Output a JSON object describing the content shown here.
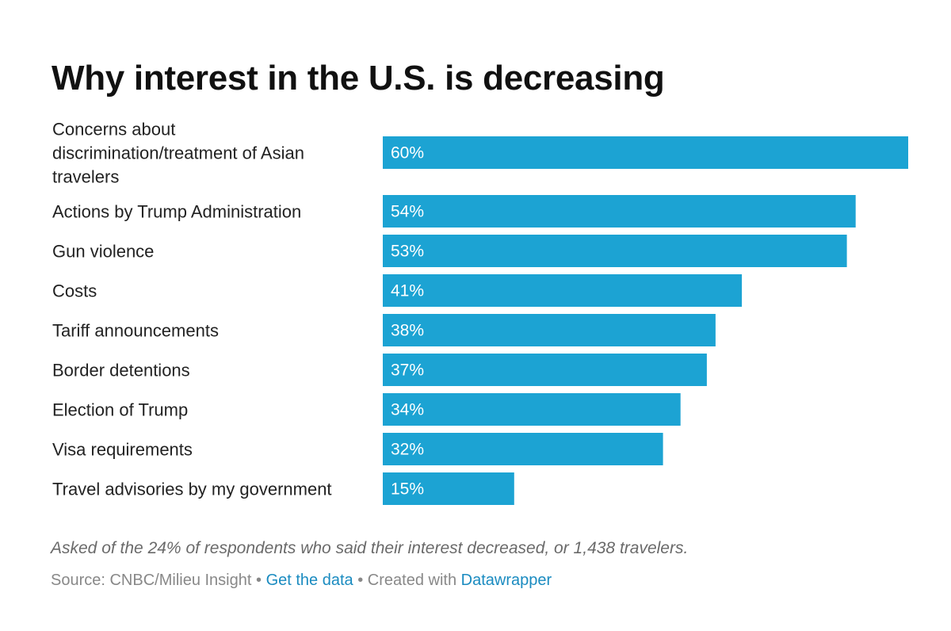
{
  "title": "Why interest in the U.S. is decreasing",
  "chart_data": {
    "type": "bar",
    "orientation": "horizontal",
    "title": "Why interest in the U.S. is decreasing",
    "categories": [
      "Concerns about discrimination/treatment of Asian travelers",
      "Actions by Trump Administration",
      "Gun violence",
      "Costs",
      "Tariff announcements",
      "Border detentions",
      "Election of Trump",
      "Visa requirements",
      "Travel advisories by my government"
    ],
    "label_lines": [
      [
        "Concerns about",
        "discrimination/treatment of Asian",
        "travelers"
      ],
      [
        "Actions by Trump Administration"
      ],
      [
        "Gun violence"
      ],
      [
        "Costs"
      ],
      [
        "Tariff announcements"
      ],
      [
        "Border detentions"
      ],
      [
        "Election of Trump"
      ],
      [
        "Visa requirements"
      ],
      [
        "Travel advisories by my government"
      ]
    ],
    "values": [
      60,
      54,
      53,
      41,
      38,
      37,
      34,
      32,
      15
    ],
    "value_labels": [
      "60%",
      "54%",
      "53%",
      "41%",
      "38%",
      "37%",
      "34%",
      "32%",
      "15%"
    ],
    "xlim": [
      0,
      60
    ],
    "unit": "%",
    "bar_color": "#1ca3d3",
    "grid": false,
    "xlabel": "",
    "ylabel": ""
  },
  "note": "Asked of the 24% of respondents who said their interest decreased, or 1,438 travelers.",
  "footer": {
    "source": "Source: CNBC/Milieu Insight",
    "separator": "•",
    "get_data": "Get the data",
    "created_with": "Created with",
    "datawrapper": "Datawrapper"
  },
  "colors": {
    "bar": "#1ca3d3",
    "link": "#1a8bc0",
    "title": "#111111"
  }
}
